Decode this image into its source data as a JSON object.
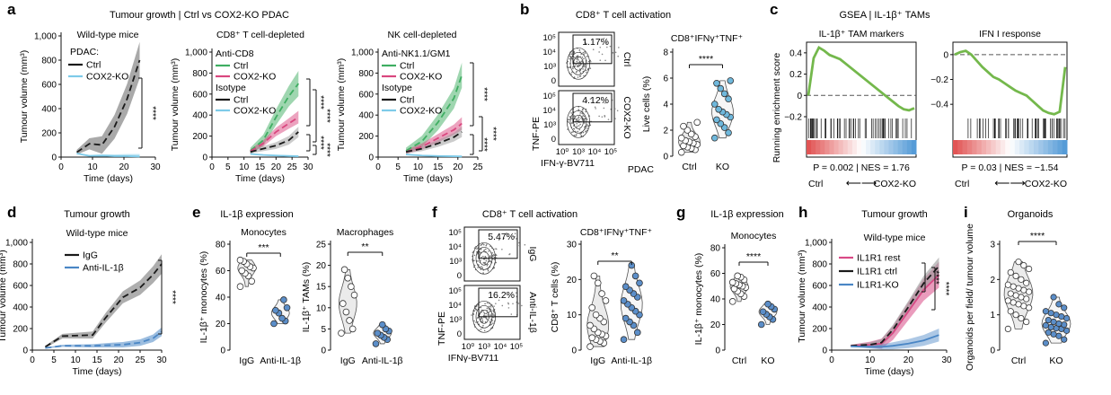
{
  "colors": {
    "ctrl": "#1a1a1a",
    "ko_light": "#7ecbe9",
    "ko_blue": "#4a86c5",
    "band_grey": "#9a9a9a",
    "green": "#3fae62",
    "pink": "#d9477f",
    "gsea_line": "#74b84c",
    "violet_blue": "#5b8ec9",
    "violet_blue_light": "#6fb8dc",
    "violet_pink": "#d94a86"
  },
  "panels": {
    "a": {
      "letter": "a",
      "title": "Tumour growth | Ctrl vs COX2-KO PDAC"
    },
    "b": {
      "letter": "b",
      "title": "CD8⁺ T cell activation"
    },
    "c": {
      "letter": "c",
      "title": "GSEA | IL-1β⁺ TAMs"
    },
    "d": {
      "letter": "d",
      "title": "Tumour growth"
    },
    "e": {
      "letter": "e",
      "title": "IL-1β expression"
    },
    "f": {
      "letter": "f",
      "title": "CD8⁺ T cell activation"
    },
    "g": {
      "letter": "g",
      "title": "IL-1β expression"
    },
    "h": {
      "letter": "h",
      "title": "Tumour growth"
    },
    "i": {
      "letter": "i",
      "title": "Organoids"
    }
  },
  "stars": {
    "four": "****",
    "three": "***",
    "two": "**"
  },
  "arrows": {
    "double": "⟵⟶"
  },
  "chart_data": [
    {
      "id": "a1",
      "type": "line",
      "title": "Wild-type mice",
      "xlabel": "Time (days)",
      "ylabel": "Tumour volume (mm³)",
      "xlim": [
        0,
        30
      ],
      "ylim": [
        0,
        1000
      ],
      "xticks": [
        "0",
        "10",
        "20",
        "30"
      ],
      "yticks": [
        "0",
        "200",
        "400",
        "600",
        "800",
        "1,000"
      ],
      "legend_title": "PDAC:",
      "series": [
        {
          "name": "Ctrl",
          "x": [
            5,
            9,
            13,
            17,
            21,
            25
          ],
          "y": [
            40,
            110,
            100,
            250,
            480,
            800
          ],
          "band": [
            20,
            150
          ]
        },
        {
          "name": "COX2-KO",
          "x": [
            5,
            9,
            13,
            17,
            21,
            25
          ],
          "y": [
            30,
            10,
            12,
            8,
            8,
            5
          ],
          "band": [
            5,
            20
          ]
        }
      ],
      "significance": "****"
    },
    {
      "id": "a2",
      "type": "line",
      "title": "CD8⁺ T cell-depleted",
      "xlabel": "Time (days)",
      "ylabel": "Tumour volume (mm³)",
      "xlim": [
        0,
        30
      ],
      "ylim": [
        0,
        1000
      ],
      "xticks": [
        "0",
        "5",
        "10",
        "15",
        "20",
        "25",
        "30"
      ],
      "yticks": [
        "0",
        "200",
        "400",
        "600",
        "800",
        "1,000"
      ],
      "legend_groups": [
        {
          "header": "Anti-CD8",
          "entries": [
            "Ctrl",
            "COX2-KO"
          ]
        },
        {
          "header": "Isotype",
          "entries": [
            "Ctrl",
            "COX2-KO"
          ]
        }
      ],
      "series": [
        {
          "name": "Anti-CD8 Ctrl",
          "x": [
            12,
            16,
            20,
            24,
            27
          ],
          "y": [
            60,
            160,
            380,
            580,
            700
          ],
          "band": [
            30,
            120
          ]
        },
        {
          "name": "Anti-CD8 COX2-KO",
          "x": [
            12,
            16,
            20,
            24,
            27
          ],
          "y": [
            55,
            130,
            240,
            320,
            380
          ],
          "band": [
            20,
            60
          ]
        },
        {
          "name": "Isotype Ctrl",
          "x": [
            12,
            16,
            20,
            24,
            27
          ],
          "y": [
            50,
            80,
            110,
            160,
            240
          ],
          "band": [
            15,
            50
          ]
        },
        {
          "name": "Isotype COX2-KO",
          "x": [
            12,
            16,
            20,
            24,
            27
          ],
          "y": [
            30,
            20,
            15,
            10,
            8
          ],
          "band": [
            5,
            10
          ]
        }
      ],
      "significance": [
        "****",
        "****",
        "****",
        "****"
      ]
    },
    {
      "id": "a3",
      "type": "line",
      "title": "NK cell-depleted",
      "xlabel": "Time (days)",
      "ylabel": "Tumour volume (mm³)",
      "xlim": [
        0,
        25
      ],
      "ylim": [
        0,
        1000
      ],
      "xticks": [
        "0",
        "5",
        "10",
        "15",
        "20",
        "25"
      ],
      "yticks": [
        "0",
        "200",
        "400",
        "600",
        "800",
        "1,000"
      ],
      "legend_groups": [
        {
          "header": "Anti-NK1.1/GM1",
          "entries": [
            "Ctrl",
            "COX2-KO"
          ]
        },
        {
          "header": "Isotype",
          "entries": [
            "Ctrl",
            "COX2-KO"
          ]
        }
      ],
      "series": [
        {
          "name": "Anti-NK1.1/GM1 Ctrl",
          "x": [
            7,
            11,
            15,
            19,
            21
          ],
          "y": [
            60,
            150,
            330,
            560,
            780
          ],
          "band": [
            30,
            120
          ]
        },
        {
          "name": "Anti-NK1.1/GM1 COX2-KO",
          "x": [
            7,
            11,
            15,
            19,
            21
          ],
          "y": [
            50,
            100,
            180,
            260,
            320
          ],
          "band": [
            20,
            60
          ]
        },
        {
          "name": "Isotype Ctrl",
          "x": [
            7,
            11,
            15,
            19,
            21
          ],
          "y": [
            50,
            80,
            130,
            190,
            240
          ],
          "band": [
            15,
            50
          ]
        },
        {
          "name": "Isotype COX2-KO",
          "x": [
            7,
            11,
            15,
            19,
            21
          ],
          "y": [
            25,
            15,
            10,
            8,
            6
          ],
          "band": [
            5,
            10
          ]
        }
      ],
      "significance": [
        "****",
        "****",
        "****"
      ]
    },
    {
      "id": "b_flow",
      "type": "scatter",
      "subtype": "flow",
      "xlabel": "IFN-γ-BV711",
      "ylabel": "TNF-PE",
      "yticks": [
        "10⁵",
        "10⁴",
        "10³",
        "0"
      ],
      "xticks": [
        "10⁰",
        "10³",
        "10⁴",
        "10⁵"
      ],
      "gates": [
        {
          "label": "Ctrl",
          "percent": "1.17%"
        },
        {
          "label": "COX2-KO",
          "percent": "4.12%"
        }
      ]
    },
    {
      "id": "b_violin",
      "type": "scatter",
      "subtype": "violin",
      "title": "CD8⁺IFNγ⁺TNF⁺",
      "ylabel": "Live cells (%)",
      "ylim": [
        0,
        8
      ],
      "yticks": [
        "0",
        "2",
        "4",
        "6",
        "8"
      ],
      "group_label": "PDAC",
      "categories": [
        "Ctrl",
        "KO"
      ],
      "series": [
        {
          "name": "Ctrl",
          "values": [
            0.3,
            0.5,
            0.6,
            0.7,
            0.8,
            0.9,
            1.0,
            1.1,
            1.2,
            1.4,
            1.5,
            1.7,
            2.0,
            2.3,
            2.6
          ]
        },
        {
          "name": "KO",
          "values": [
            1.4,
            1.8,
            2.2,
            2.5,
            2.8,
            3.0,
            3.2,
            3.4,
            3.6,
            4.0,
            4.4,
            4.8,
            5.2,
            5.6,
            5.8
          ]
        }
      ],
      "significance": "****"
    },
    {
      "id": "c1",
      "type": "line",
      "subtype": "gsea",
      "title": "IL-1β⁺ TAM markers",
      "ylabel": "Running enrichment score",
      "ylim": [
        -0.2,
        0.5
      ],
      "yticks": [
        "0.4",
        "0.2",
        "0",
        "−0.2"
      ],
      "stat": "P = 0.002 | NES = 1.76",
      "x_left": "Ctrl",
      "x_right": "COX2-KO",
      "es": [
        0,
        0.35,
        0.45,
        0.42,
        0.38,
        0.36,
        0.34,
        0.3,
        0.26,
        0.22,
        0.18,
        0.14,
        0.1,
        0.06,
        0.02,
        -0.02,
        -0.06,
        -0.1,
        -0.13,
        -0.14,
        -0.12
      ]
    },
    {
      "id": "c2",
      "type": "line",
      "subtype": "gsea",
      "title": "IFN I response",
      "ylim": [
        -0.5,
        0.1
      ],
      "yticks": [
        "0",
        "−0.2",
        "−0.4"
      ],
      "stat": "P = 0.03 | NES = −1.54",
      "x_left": "Ctrl",
      "x_right": "COX2-KO",
      "es": [
        0,
        0.02,
        0.03,
        0,
        -0.05,
        -0.1,
        -0.14,
        -0.18,
        -0.2,
        -0.23,
        -0.26,
        -0.29,
        -0.31,
        -0.33,
        -0.37,
        -0.41,
        -0.45,
        -0.47,
        -0.48,
        -0.46,
        -0.1
      ]
    },
    {
      "id": "d",
      "type": "line",
      "title": "Wild-type mice",
      "xlabel": "Time (days)",
      "ylabel": "Tumour volume (mm³)",
      "xlim": [
        0,
        30
      ],
      "ylim": [
        0,
        1000
      ],
      "xticks": [
        "0",
        "5",
        "10",
        "15",
        "20",
        "25",
        "30"
      ],
      "yticks": [
        "0",
        "200",
        "400",
        "600",
        "800",
        "1,000"
      ],
      "series": [
        {
          "name": "IgG",
          "x": [
            3,
            7,
            14,
            17,
            21,
            25,
            28,
            30
          ],
          "y": [
            30,
            130,
            140,
            300,
            490,
            580,
            700,
            800
          ],
          "band": [
            10,
            90
          ]
        },
        {
          "name": "Anti-IL-1β",
          "x": [
            3,
            7,
            14,
            17,
            21,
            25,
            28,
            30
          ],
          "y": [
            20,
            40,
            40,
            45,
            50,
            70,
            110,
            170
          ],
          "band": [
            5,
            40
          ]
        }
      ],
      "significance": "****"
    },
    {
      "id": "e1",
      "type": "scatter",
      "subtype": "violin",
      "title": "Monocytes",
      "ylabel": "IL-1β⁺ monocytes (%)",
      "ylim": [
        0,
        80
      ],
      "yticks": [
        "0",
        "20",
        "40",
        "60",
        "80"
      ],
      "categories": [
        "IgG",
        "Anti-IL-1β"
      ],
      "series": [
        {
          "name": "IgG",
          "values": [
            48,
            52,
            56,
            58,
            60,
            62,
            63,
            65,
            67,
            68
          ]
        },
        {
          "name": "Anti-IL-1β",
          "values": [
            20,
            22,
            24,
            28,
            30,
            32,
            38
          ]
        }
      ],
      "significance": "***"
    },
    {
      "id": "e2",
      "type": "scatter",
      "subtype": "violin",
      "title": "Macrophages",
      "ylabel": "IL-1β⁺ TAMs (%)",
      "ylim": [
        0,
        25
      ],
      "yticks": [
        "0",
        "5",
        "10",
        "15",
        "20",
        "25"
      ],
      "categories": [
        "IgG",
        "Anti-IL-1β"
      ],
      "series": [
        {
          "name": "IgG",
          "values": [
            4,
            5,
            7,
            9,
            11,
            13,
            15,
            17,
            19
          ]
        },
        {
          "name": "Anti-IL-1β",
          "values": [
            1.5,
            2.5,
            3,
            3.5,
            4,
            4.5,
            5,
            6
          ]
        }
      ],
      "significance": "**"
    },
    {
      "id": "f_flow",
      "type": "scatter",
      "subtype": "flow",
      "xlabel": "IFNγ-BV711",
      "ylabel": "TNF-PE",
      "yticks": [
        "10⁵",
        "10⁴",
        "10³",
        "0"
      ],
      "xticks": [
        "10⁰",
        "10³",
        "10⁴",
        "10⁵"
      ],
      "gates": [
        {
          "label": "IgG",
          "percent": "5.47%"
        },
        {
          "label": "Anti-IL-1β",
          "percent": "16.2%"
        }
      ]
    },
    {
      "id": "f_violin",
      "type": "scatter",
      "subtype": "violin",
      "title": "CD8⁺IFNγ⁺TNF⁺",
      "ylabel": "CD8⁺ T cells (%)",
      "ylim": [
        0,
        30
      ],
      "yticks": [
        "0",
        "10",
        "20",
        "30"
      ],
      "categories": [
        "IgG",
        "Anti-IL-1β"
      ],
      "series": [
        {
          "name": "IgG",
          "values": [
            1,
            2,
            2.5,
            3,
            3.5,
            4,
            4.5,
            5,
            6,
            7,
            8,
            9,
            10,
            12,
            14,
            16,
            19,
            21
          ]
        },
        {
          "name": "Anti-IL-1β",
          "values": [
            3,
            5,
            7,
            8,
            9,
            10,
            11,
            12,
            13,
            14,
            15,
            16,
            17,
            18,
            19,
            21,
            24
          ]
        }
      ],
      "significance": "**"
    },
    {
      "id": "g",
      "type": "scatter",
      "subtype": "violin",
      "title": "Monocytes",
      "ylabel": "IL-1β⁺ monocytes (%)",
      "ylim": [
        0,
        80
      ],
      "yticks": [
        "0",
        "20",
        "40",
        "60",
        "80"
      ],
      "categories": [
        "Ctrl",
        "KO"
      ],
      "series": [
        {
          "name": "Ctrl",
          "values": [
            38,
            42,
            44,
            46,
            48,
            49,
            50,
            51,
            52,
            53,
            55,
            57,
            58
          ]
        },
        {
          "name": "KO",
          "values": [
            20,
            24,
            26,
            28,
            30,
            32,
            34,
            36
          ]
        }
      ],
      "significance": "****"
    },
    {
      "id": "h",
      "type": "line",
      "title": "Wild-type mice",
      "xlabel": "Time (days)",
      "ylabel": "Tumour volume (mm³)",
      "xlim": [
        0,
        30
      ],
      "ylim": [
        0,
        1000
      ],
      "xticks": [
        "0",
        "10",
        "20",
        "30"
      ],
      "yticks": [
        "0",
        "200",
        "400",
        "600",
        "800",
        "1,000"
      ],
      "series": [
        {
          "name": "IL1R1 rest",
          "x": [
            5,
            10,
            13,
            16,
            20,
            24,
            28
          ],
          "y": [
            40,
            50,
            60,
            160,
            360,
            560,
            700
          ],
          "band": [
            10,
            120
          ]
        },
        {
          "name": "IL1R1 ctrl",
          "x": [
            5,
            10,
            13,
            16,
            20,
            24,
            28
          ],
          "y": [
            40,
            50,
            70,
            190,
            400,
            620,
            780
          ],
          "band": [
            10,
            80
          ]
        },
        {
          "name": "IL1R1-KO",
          "x": [
            5,
            10,
            13,
            16,
            20,
            24,
            28
          ],
          "y": [
            35,
            30,
            30,
            40,
            60,
            90,
            140
          ],
          "band": [
            5,
            60
          ]
        }
      ],
      "significance": [
        "****",
        "****"
      ]
    },
    {
      "id": "i",
      "type": "scatter",
      "subtype": "violin",
      "ylabel": "Organoids per field/ tumour volume",
      "ylim": [
        0,
        3
      ],
      "yticks": [
        "0",
        "1",
        "2",
        "3"
      ],
      "categories": [
        "Ctrl",
        "KO"
      ],
      "series": [
        {
          "name": "Ctrl",
          "values": [
            0.6,
            0.8,
            0.9,
            1.0,
            1.1,
            1.2,
            1.25,
            1.3,
            1.35,
            1.4,
            1.45,
            1.5,
            1.55,
            1.6,
            1.65,
            1.7,
            1.75,
            1.8,
            1.85,
            1.9,
            2.0,
            2.1,
            2.2,
            2.3,
            2.4,
            2.5
          ]
        },
        {
          "name": "KO",
          "values": [
            0.2,
            0.3,
            0.4,
            0.45,
            0.5,
            0.55,
            0.6,
            0.62,
            0.65,
            0.7,
            0.72,
            0.75,
            0.8,
            0.85,
            0.9,
            0.95,
            1.0,
            1.05,
            1.1,
            1.2,
            1.3,
            1.5
          ]
        }
      ],
      "significance": "****"
    }
  ]
}
